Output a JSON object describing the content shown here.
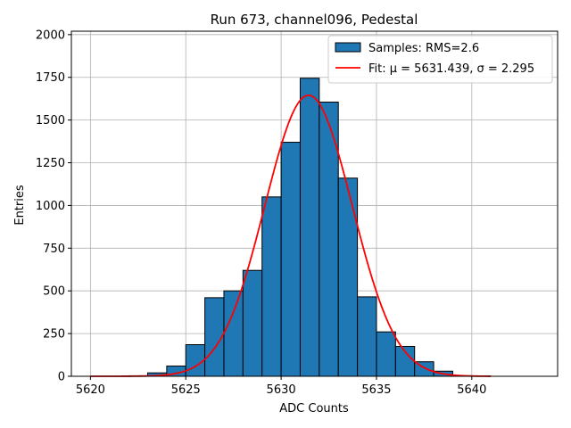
{
  "chart_data": {
    "type": "bar",
    "title": "Run 673, channel096, Pedestal",
    "xlabel": "ADC Counts",
    "ylabel": "Entries",
    "xlim": [
      5619.0,
      5644.5
    ],
    "ylim": [
      0,
      2020
    ],
    "xticks": [
      5620,
      5625,
      5630,
      5635,
      5640
    ],
    "yticks": [
      0,
      250,
      500,
      750,
      1000,
      1250,
      1500,
      1750,
      2000
    ],
    "grid": true,
    "legend_position": "top-right",
    "bar_color": "#1f77b4",
    "fit_color": "#ff0000",
    "histogram": {
      "name": "Samples: RMS=2.6",
      "bin_width": 1,
      "bin_starts": [
        5620,
        5621,
        5622,
        5623,
        5624,
        5625,
        5626,
        5627,
        5628,
        5629,
        5630,
        5631,
        5632,
        5633,
        5634,
        5635,
        5636,
        5637,
        5638,
        5639,
        5640,
        5641,
        5642
      ],
      "counts": [
        0,
        0,
        3,
        20,
        60,
        185,
        460,
        500,
        620,
        1050,
        1370,
        1745,
        1605,
        1160,
        465,
        260,
        175,
        85,
        30,
        3,
        0,
        0,
        0
      ]
    },
    "fit": {
      "name": "Fit: μ = 5631.439, σ = 2.295",
      "mu": 5631.439,
      "sigma": 2.295,
      "amplitude": 1645,
      "x_range": [
        5620,
        5641
      ]
    }
  }
}
